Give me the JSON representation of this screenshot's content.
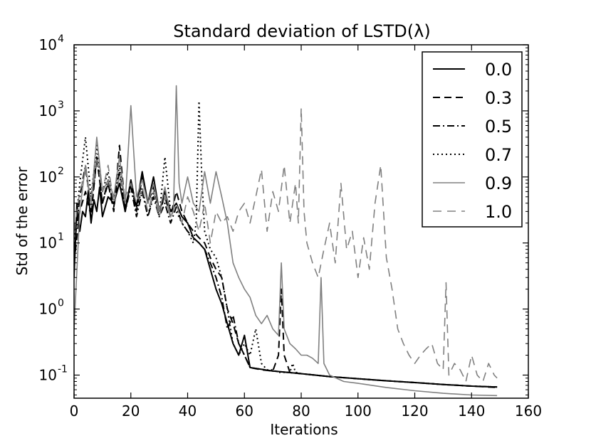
{
  "chart_data": {
    "type": "line",
    "title": "Standard deviation of LSTD(λ)",
    "xlabel": "Iterations",
    "ylabel": "Std of the error",
    "xlim": [
      0,
      160
    ],
    "ylim_log10": [
      -1.35,
      4
    ],
    "yscale": "log",
    "grid": false,
    "legend_position": "top-right",
    "x_ticks": [
      0,
      20,
      40,
      60,
      80,
      100,
      120,
      140,
      160
    ],
    "x_tick_labels": [
      "0",
      "20",
      "40",
      "60",
      "80",
      "100",
      "120",
      "140",
      "160"
    ],
    "y_ticks": [
      {
        "base": "10",
        "exp": "-1"
      },
      {
        "base": "10",
        "exp": "0"
      },
      {
        "base": "10",
        "exp": "1"
      },
      {
        "base": "10",
        "exp": "2"
      },
      {
        "base": "10",
        "exp": "3"
      },
      {
        "base": "10",
        "exp": "4"
      }
    ],
    "series": [
      {
        "name": "0.0",
        "color": "#000000",
        "dash": "",
        "stroke_width": 2,
        "x": [
          0,
          1,
          2,
          3,
          4,
          5,
          6,
          7,
          8,
          9,
          10,
          12,
          14,
          16,
          18,
          20,
          22,
          24,
          26,
          28,
          30,
          32,
          34,
          36,
          38,
          40,
          42,
          44,
          46,
          48,
          50,
          52,
          54,
          56,
          58,
          60,
          62,
          70,
          80,
          90,
          100,
          110,
          120,
          130,
          140,
          149
        ],
        "values": [
          3,
          40,
          15,
          30,
          25,
          60,
          20,
          45,
          30,
          70,
          25,
          50,
          40,
          80,
          30,
          90,
          35,
          120,
          40,
          100,
          30,
          60,
          30,
          40,
          25,
          20,
          12,
          10,
          8,
          4,
          2,
          1.2,
          0.6,
          0.3,
          0.2,
          0.4,
          0.13,
          0.115,
          0.105,
          0.095,
          0.088,
          0.082,
          0.077,
          0.072,
          0.068,
          0.066
        ]
      },
      {
        "name": "0.3",
        "color": "#000000",
        "dash": "10,6",
        "stroke_width": 2,
        "x": [
          0,
          2,
          4,
          6,
          8,
          10,
          12,
          14,
          16,
          18,
          20,
          22,
          24,
          26,
          28,
          30,
          32,
          34,
          36,
          38,
          40,
          42,
          44,
          46,
          48,
          50,
          52,
          54,
          56,
          58,
          60,
          62,
          66,
          70,
          72,
          73,
          74,
          76,
          80,
          90,
          100,
          110,
          120,
          130,
          140,
          149
        ],
        "values": [
          5,
          30,
          60,
          25,
          200,
          40,
          80,
          30,
          300,
          35,
          80,
          30,
          100,
          40,
          70,
          30,
          50,
          25,
          60,
          30,
          20,
          15,
          12,
          10,
          6,
          4,
          3,
          1,
          0.6,
          0.3,
          0.2,
          0.13,
          0.12,
          0.115,
          0.2,
          2,
          0.2,
          0.11,
          0.105,
          0.095,
          0.088,
          0.082,
          0.077,
          0.072,
          0.068,
          0.065
        ]
      },
      {
        "name": "0.5",
        "color": "#000000",
        "dash": "10,4,2,4",
        "stroke_width": 2,
        "x": [
          0,
          2,
          4,
          6,
          8,
          10,
          12,
          14,
          16,
          18,
          20,
          22,
          24,
          26,
          28,
          30,
          32,
          34,
          36,
          38,
          40,
          42,
          44,
          46,
          48,
          50,
          52,
          54,
          56,
          58,
          60,
          62,
          70,
          80,
          90,
          100,
          110,
          120,
          130,
          140,
          149
        ],
        "values": [
          8,
          50,
          150,
          30,
          200,
          40,
          90,
          35,
          120,
          30,
          70,
          25,
          60,
          25,
          50,
          25,
          40,
          20,
          35,
          20,
          15,
          12,
          10,
          8,
          5,
          3,
          1.5,
          0.5,
          0.8,
          0.3,
          0.2,
          0.13,
          0.115,
          0.105,
          0.095,
          0.088,
          0.082,
          0.077,
          0.072,
          0.068,
          0.066
        ]
      },
      {
        "name": "0.7",
        "color": "#000000",
        "dash": "2,4",
        "stroke_width": 2,
        "x": [
          0,
          2,
          4,
          6,
          8,
          10,
          12,
          14,
          16,
          18,
          20,
          22,
          24,
          26,
          28,
          30,
          32,
          34,
          36,
          38,
          40,
          42,
          43,
          44,
          45,
          46,
          48,
          50,
          52,
          54,
          56,
          58,
          60,
          62,
          64,
          66,
          68,
          70,
          72,
          74,
          76,
          77,
          78,
          80,
          90,
          100,
          110,
          120,
          130,
          140,
          149
        ],
        "values": [
          10,
          80,
          400,
          50,
          300,
          60,
          120,
          40,
          150,
          30,
          80,
          30,
          70,
          25,
          60,
          25,
          200,
          30,
          30,
          20,
          15,
          10,
          20,
          1400,
          100,
          15,
          8,
          6,
          3,
          1,
          0.3,
          0.2,
          0.3,
          0.2,
          0.5,
          0.15,
          0.12,
          0.12,
          0.11,
          0.11,
          0.11,
          0.15,
          0.11,
          0.105,
          0.095,
          0.088,
          0.082,
          0.077,
          0.072,
          0.068,
          0.066
        ]
      },
      {
        "name": "0.9",
        "color": "#808080",
        "dash": "",
        "stroke_width": 1.6,
        "x": [
          0,
          2,
          4,
          6,
          8,
          10,
          12,
          14,
          16,
          18,
          20,
          22,
          24,
          26,
          28,
          30,
          32,
          34,
          35,
          36,
          37,
          38,
          40,
          42,
          44,
          46,
          48,
          50,
          52,
          54,
          56,
          58,
          60,
          62,
          64,
          66,
          68,
          70,
          72,
          73,
          74,
          76,
          78,
          80,
          82,
          84,
          86,
          87,
          88,
          90,
          95,
          100,
          110,
          120,
          130,
          140,
          149
        ],
        "values": [
          0.5,
          30,
          150,
          40,
          400,
          60,
          90,
          50,
          200,
          40,
          1200,
          50,
          90,
          40,
          80,
          30,
          70,
          25,
          30,
          2400,
          80,
          40,
          100,
          40,
          30,
          120,
          40,
          120,
          50,
          20,
          5,
          3,
          2,
          1.5,
          0.8,
          0.6,
          0.8,
          0.5,
          0.4,
          5,
          0.5,
          0.3,
          0.25,
          0.2,
          0.2,
          0.18,
          0.15,
          3,
          0.15,
          0.1,
          0.08,
          0.075,
          0.065,
          0.058,
          0.053,
          0.05,
          0.049
        ]
      },
      {
        "name": "1.0",
        "color": "#808080",
        "dash": "12,8",
        "stroke_width": 1.6,
        "x": [
          0,
          2,
          4,
          6,
          8,
          10,
          12,
          14,
          16,
          18,
          20,
          22,
          24,
          26,
          28,
          30,
          32,
          34,
          36,
          38,
          40,
          42,
          44,
          46,
          48,
          50,
          52,
          54,
          56,
          58,
          60,
          62,
          64,
          66,
          68,
          70,
          72,
          74,
          76,
          78,
          79,
          80,
          81,
          82,
          84,
          86,
          88,
          90,
          92,
          94,
          96,
          98,
          100,
          102,
          104,
          106,
          108,
          110,
          112,
          114,
          116,
          118,
          120,
          122,
          124,
          126,
          128,
          130,
          131,
          132,
          134,
          136,
          138,
          140,
          142,
          144,
          146,
          148,
          149
        ],
        "values": [
          15,
          60,
          120,
          40,
          200,
          60,
          150,
          40,
          100,
          50,
          80,
          40,
          70,
          30,
          60,
          25,
          50,
          25,
          40,
          20,
          50,
          30,
          15,
          40,
          10,
          30,
          20,
          25,
          15,
          30,
          40,
          20,
          50,
          130,
          15,
          60,
          30,
          150,
          20,
          80,
          20,
          1100,
          30,
          10,
          5,
          3,
          8,
          20,
          5,
          80,
          8,
          15,
          3,
          12,
          4,
          40,
          150,
          6,
          2,
          0.5,
          0.3,
          0.2,
          0.15,
          0.2,
          0.25,
          0.3,
          0.15,
          0.12,
          2.5,
          0.1,
          0.15,
          0.12,
          0.08,
          0.2,
          0.1,
          0.08,
          0.15,
          0.1,
          0.09
        ]
      }
    ]
  }
}
